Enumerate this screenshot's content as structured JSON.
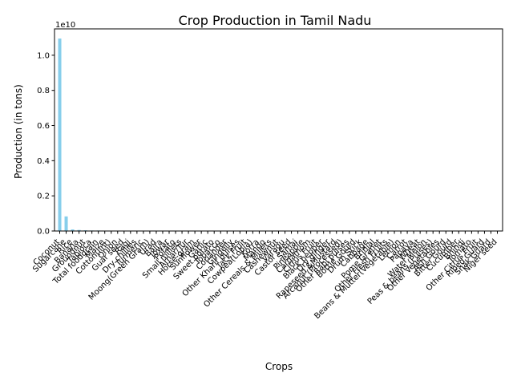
{
  "chart_data": {
    "type": "bar",
    "title": "Crop Production in Tamil Nadu",
    "xlabel": "Crops",
    "ylabel": "Production (in tons)",
    "offset_label": "1e10",
    "ylim": [
      0,
      1.15
    ],
    "yticks": [
      "0.0",
      "0.2",
      "0.4",
      "0.6",
      "0.8",
      "1.0"
    ],
    "ytick_values": [
      0.0,
      0.2,
      0.4,
      0.6,
      0.8,
      1.0
    ],
    "grid": false,
    "bar_color": "#87ceeb",
    "categories": [
      "Coconut",
      "Sugarcane",
      "Rice",
      "Banana",
      "Groundnut",
      "Tapioca",
      "Total foodgrain",
      "Maize",
      "Cotton(lint)",
      "Onion",
      "Guar seed",
      "Ragi",
      "Dry chillies",
      "Turmeric",
      "Moong(Green Gram)",
      "Urad",
      "Bajra",
      "Jowar",
      "Potato",
      "Small millets",
      "Arhar/Tur",
      "Horse-gram",
      "Sunflower",
      "Garlic",
      "Sweet potato",
      "Tobacco",
      "Coriander",
      "Gingelly",
      "Other Kharif pulses",
      "Jack Fruit",
      "Cowpea(Lobia)",
      "Korra",
      "Mango",
      "Other Cereals & Millets",
      "Cashewnut",
      "Varagu",
      "Castor seed",
      "Samai",
      "Pineapple",
      "Cardamom",
      "Citrus Fruit",
      "Black pepper",
      "Dry ginger",
      "Rapeseed &Mustard",
      "Arcanut (Processed)",
      "Other Rabi pulses",
      "Bottle Gourd",
      "Drum Stick",
      "Cabbage",
      "Brinjal",
      "Pome Granet",
      "Other Fresh Fruits",
      "Beans & Mutter(Vegetable)",
      "Lemon",
      "Carrot",
      "Papaya",
      "Wheat",
      "Water Melon",
      "Peas & beans (Pulses)",
      "Other Vegetables",
      "Ash Gourd",
      "Bitter Gourd",
      "Cucumber",
      "Bhindi",
      "Tomato",
      "Other Citrus Fruit",
      "Ribed Guard",
      "Snak Guard",
      "Niger seed"
    ],
    "values": [
      1.095,
      0.083,
      0.009,
      0.006,
      0.004,
      0.003,
      0.003,
      0.002,
      0.002,
      0.0015,
      0.001,
      0.001,
      0.0008,
      0.0007,
      0.0006,
      0.0005,
      0.0005,
      0.0004,
      0.0004,
      0.0003,
      0.0003,
      0.0003,
      0.0002,
      0.0002,
      0.0002,
      0.0002,
      0.0002,
      0.0001,
      0.0001,
      0.0001,
      0.0001,
      0.0001,
      0.0001,
      0.0001,
      0.0001,
      0.0001,
      0,
      0,
      0,
      0,
      0,
      0,
      0,
      0,
      0,
      0,
      0,
      0,
      0,
      0,
      0,
      0,
      0,
      0,
      0,
      0,
      0,
      0,
      0,
      0,
      0,
      0,
      0,
      0,
      0,
      0,
      0,
      0,
      0
    ]
  }
}
